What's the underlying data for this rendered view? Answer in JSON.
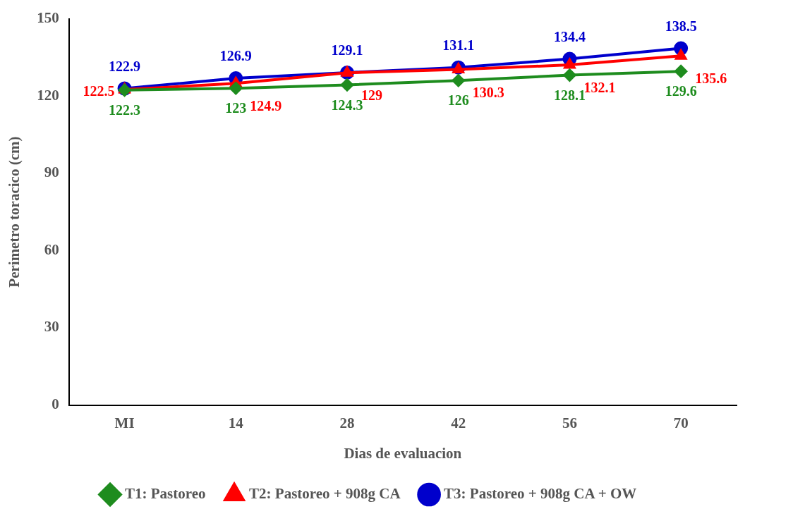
{
  "chart_data": {
    "type": "line",
    "xlabel": "Dias de evaluacion",
    "ylabel": "Perimetro toracico (cm)",
    "categories": [
      "MI",
      "14",
      "28",
      "42",
      "56",
      "70"
    ],
    "series": [
      {
        "name": "T1: Pastoreo",
        "color": "#1e8c1e",
        "marker": "diamond",
        "values": [
          122.3,
          123,
          124.3,
          126,
          128.1,
          129.6
        ]
      },
      {
        "name": "T2: Pastoreo + 908g CA",
        "color": "#ff0000",
        "marker": "triangle",
        "values": [
          122.5,
          124.9,
          129,
          130.3,
          132.1,
          135.6
        ]
      },
      {
        "name": "T3: Pastoreo + 908g CA + OW",
        "color": "#0000cc",
        "marker": "circle",
        "values": [
          122.9,
          126.9,
          129.1,
          131.1,
          134.4,
          138.5
        ]
      }
    ],
    "ylim": [
      0,
      150
    ],
    "yticks": [
      0,
      30,
      60,
      90,
      120,
      150
    ],
    "grid": false,
    "legend": "bottom",
    "data_labels": true
  }
}
